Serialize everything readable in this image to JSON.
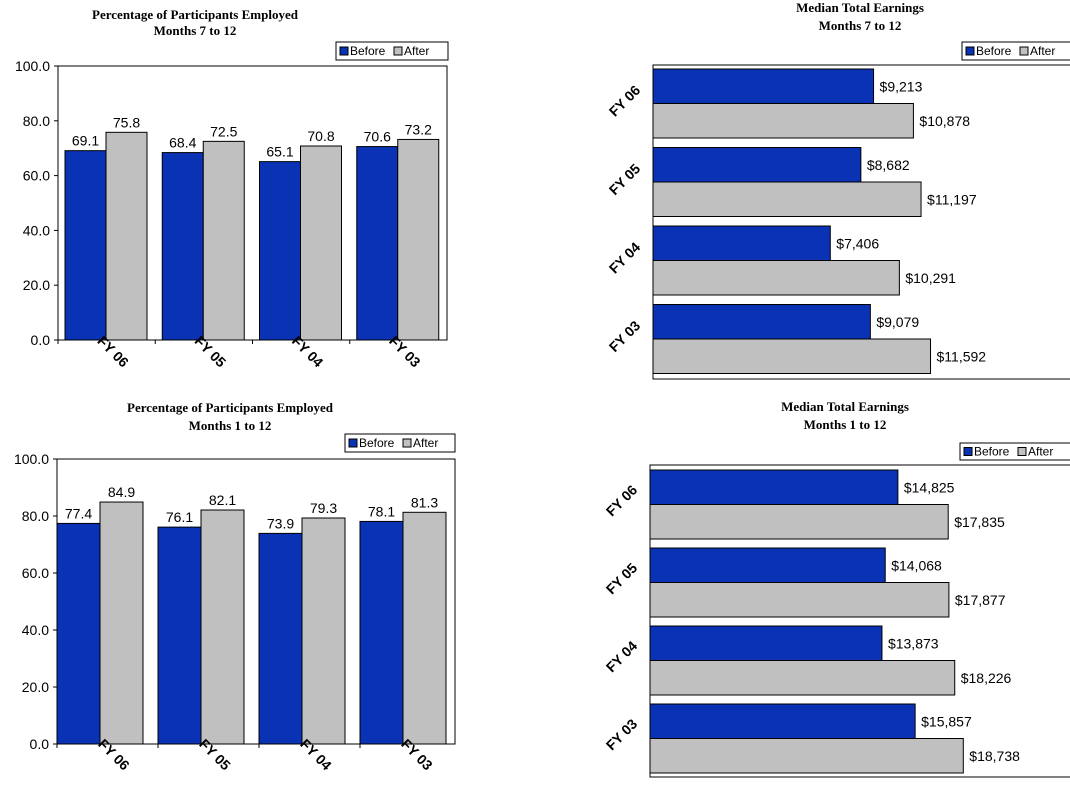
{
  "colors": {
    "before": "#0a32b4",
    "after": "#c0c0c0",
    "border": "#000000"
  },
  "chart_data": [
    {
      "type": "bar",
      "orientation": "vertical",
      "title": "Percentage of Participants Employed",
      "subtitle": "Months 7 to 12",
      "categories": [
        "FY 06",
        "FY 05",
        "FY 04",
        "FY 03"
      ],
      "series": [
        {
          "name": "Before",
          "values": [
            69.1,
            68.4,
            65.1,
            70.6
          ]
        },
        {
          "name": "After",
          "values": [
            75.8,
            72.5,
            70.8,
            73.2
          ]
        }
      ],
      "value_labels": [
        [
          "69.1",
          "68.4",
          "65.1",
          "70.6"
        ],
        [
          "75.8",
          "72.5",
          "70.8",
          "73.2"
        ]
      ],
      "ylim": [
        0,
        100
      ],
      "yticks": [
        "0.0",
        "20.0",
        "40.0",
        "60.0",
        "80.0",
        "100.0"
      ],
      "legend": "top-right",
      "grid": false
    },
    {
      "type": "bar",
      "orientation": "horizontal",
      "title": "Median Total Earnings",
      "subtitle": "Months 7 to 12",
      "categories": [
        "FY 06",
        "FY 05",
        "FY 04",
        "FY 03"
      ],
      "series": [
        {
          "name": "Before",
          "values": [
            9213,
            8682,
            7406,
            9079
          ]
        },
        {
          "name": "After",
          "values": [
            10878,
            11197,
            10291,
            11592
          ]
        }
      ],
      "value_labels": [
        [
          "$9,213",
          "$8,682",
          "$7,406",
          "$9,079"
        ],
        [
          "$10,878",
          "$11,197",
          "$10,291",
          "$11,592"
        ]
      ],
      "xlim": [
        0,
        15000
      ],
      "legend": "top-right",
      "grid": false
    },
    {
      "type": "bar",
      "orientation": "vertical",
      "title": "Percentage of Participants Employed",
      "subtitle": "Months 1 to 12",
      "categories": [
        "FY 06",
        "FY 05",
        "FY 04",
        "FY 03"
      ],
      "series": [
        {
          "name": "Before",
          "values": [
            77.4,
            76.1,
            73.9,
            78.1
          ]
        },
        {
          "name": "After",
          "values": [
            84.9,
            82.1,
            79.3,
            81.3
          ]
        }
      ],
      "value_labels": [
        [
          "77.4",
          "76.1",
          "73.9",
          "78.1"
        ],
        [
          "84.9",
          "82.1",
          "79.3",
          "81.3"
        ]
      ],
      "ylim": [
        0,
        100
      ],
      "yticks": [
        "0.0",
        "20.0",
        "40.0",
        "60.0",
        "80.0",
        "100.0"
      ],
      "legend": "top-right",
      "grid": false
    },
    {
      "type": "bar",
      "orientation": "horizontal",
      "title": "Median Total Earnings",
      "subtitle": "Months 1 to 12",
      "categories": [
        "FY 06",
        "FY 05",
        "FY 04",
        "FY 03"
      ],
      "series": [
        {
          "name": "Before",
          "values": [
            14825,
            14068,
            13873,
            15857
          ]
        },
        {
          "name": "After",
          "values": [
            17835,
            17877,
            18226,
            18738
          ]
        }
      ],
      "value_labels": [
        [
          "$14,825",
          "$14,068",
          "$13,873",
          "$15,857"
        ],
        [
          "$17,835",
          "$17,877",
          "$18,226",
          "$18,738"
        ]
      ],
      "xlim": [
        0,
        25000
      ],
      "legend": "top-right",
      "grid": false
    }
  ]
}
